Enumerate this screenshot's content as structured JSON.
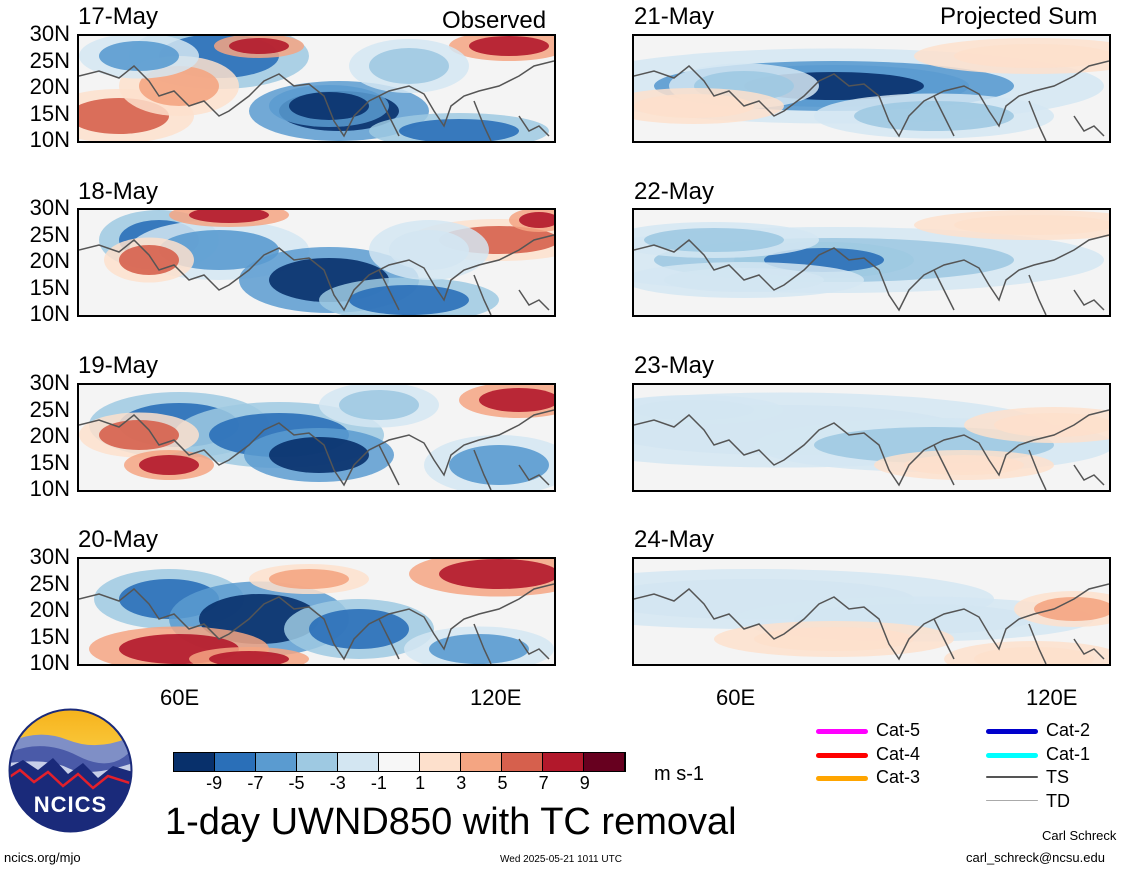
{
  "titles": {
    "observed": "Observed",
    "projected": "Projected Sum",
    "main": "1-day UWND850 with TC removal",
    "units": "m s-1"
  },
  "panels_left": [
    {
      "date": "17-May"
    },
    {
      "date": "18-May"
    },
    {
      "date": "19-May"
    },
    {
      "date": "20-May"
    }
  ],
  "panels_right": [
    {
      "date": "21-May"
    },
    {
      "date": "22-May"
    },
    {
      "date": "23-May"
    },
    {
      "date": "24-May"
    }
  ],
  "lat_labels": [
    "30N",
    "25N",
    "20N",
    "15N",
    "10N"
  ],
  "lon_labels": [
    "60E",
    "120E"
  ],
  "colorbar": {
    "colors": [
      "#08306b",
      "#2a6fb8",
      "#5a9bd0",
      "#9ec9e2",
      "#d3e6f2",
      "#f7f7f7",
      "#fde0cc",
      "#f4a582",
      "#d6604d",
      "#b2182b",
      "#67001f"
    ],
    "labels": [
      "-9",
      "-7",
      "-5",
      "-3",
      "-1",
      "1",
      "3",
      "5",
      "7",
      "9"
    ]
  },
  "tc_legend": [
    {
      "label": "Cat-5",
      "color": "#ff00ff"
    },
    {
      "label": "Cat-4",
      "color": "#ff0000"
    },
    {
      "label": "Cat-3",
      "color": "#ffa500"
    },
    {
      "label": "Cat-2",
      "color": "#0000cc"
    },
    {
      "label": "Cat-1",
      "color": "#00ffff"
    },
    {
      "label": "TS",
      "color": "#555555"
    },
    {
      "label": "TD",
      "color": "#aaaaaa"
    }
  ],
  "logo": {
    "text": "NCICS"
  },
  "footer": {
    "url": "ncics.org/mjo",
    "timestamp": "Wed 2025-05-21 1011 UTC",
    "author": "Carl Schreck",
    "email": "carl_schreck@ncsu.edu"
  }
}
